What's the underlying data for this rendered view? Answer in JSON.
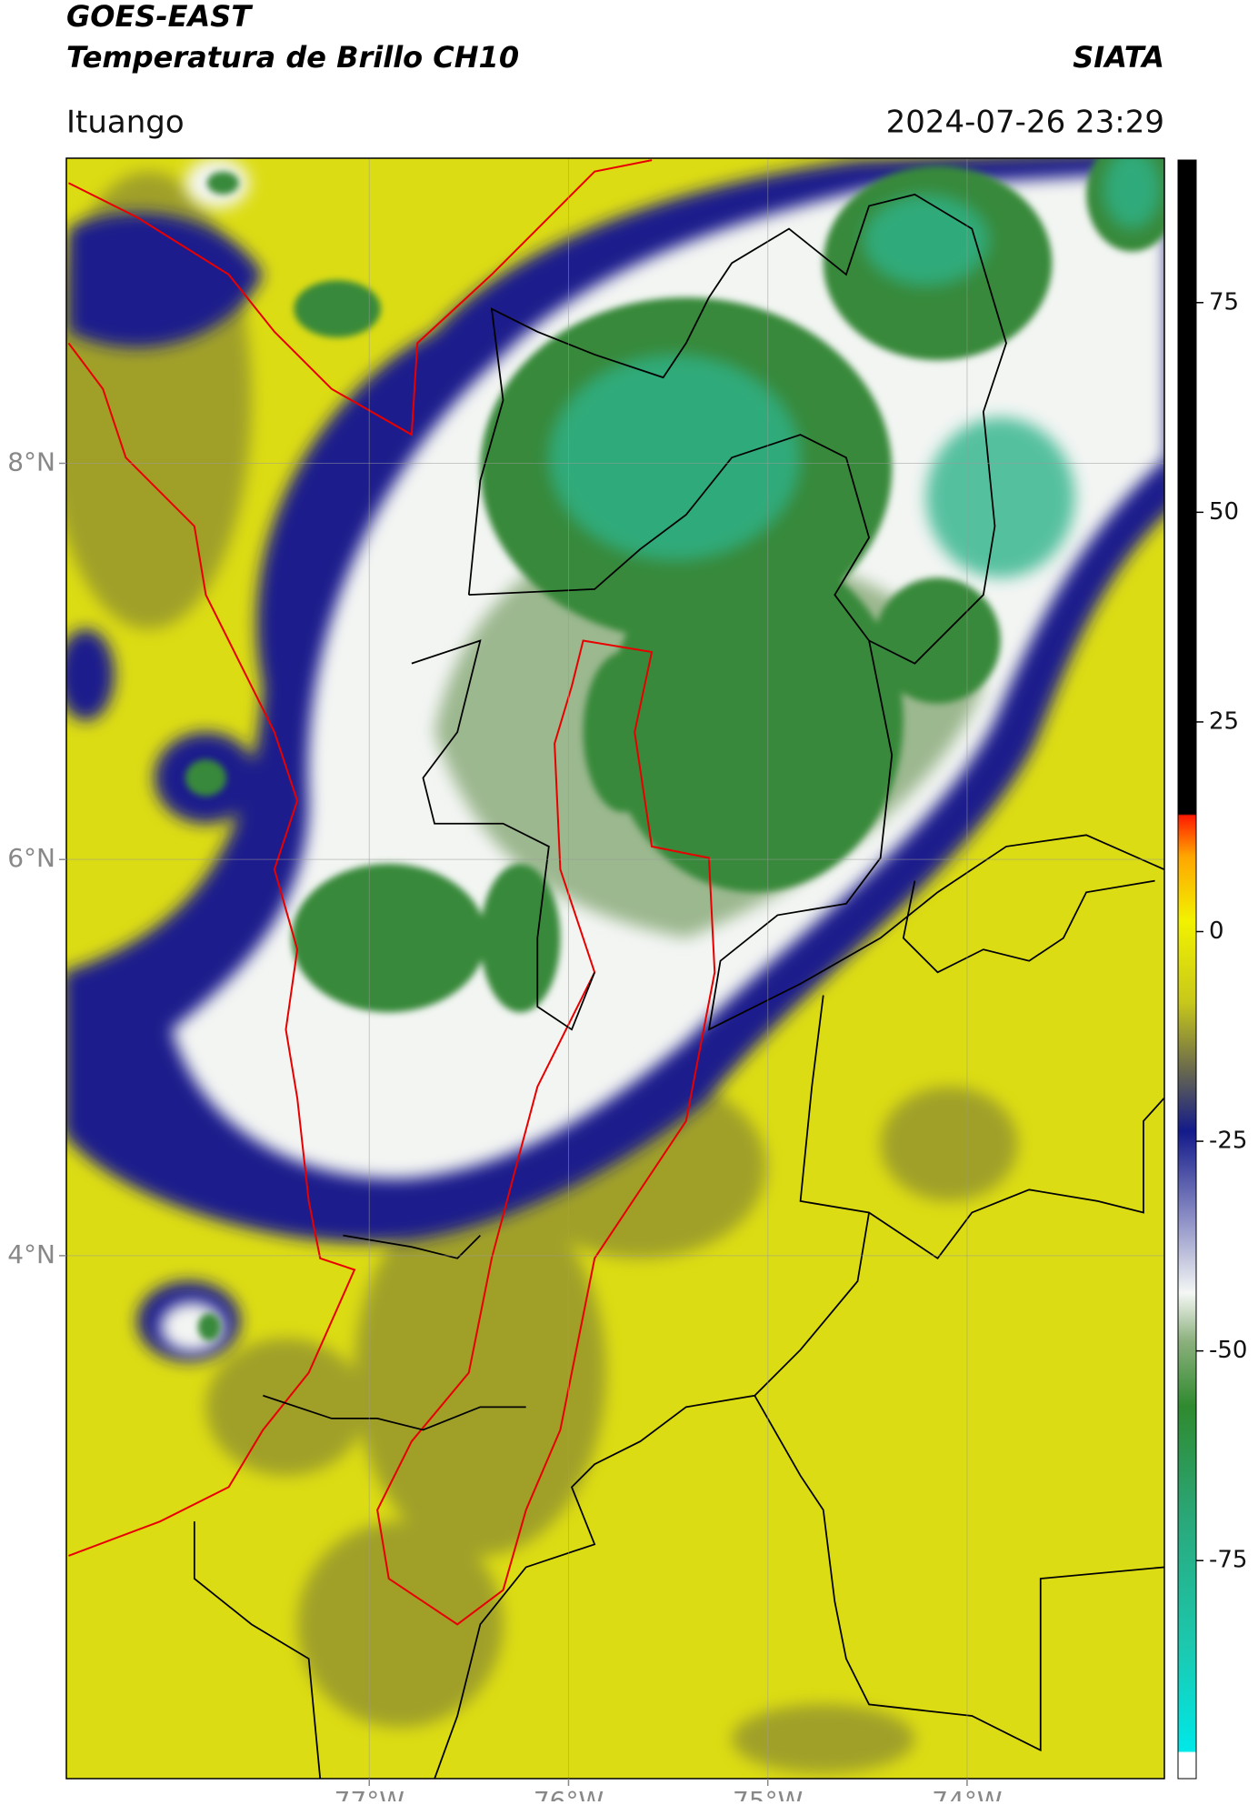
{
  "map": {
    "title": "GOES-EAST",
    "subtitle": "Temperatura de Brillo CH10",
    "brand": "SIATA",
    "location": "Ituango",
    "timestamp": "2024-07-26 23:29",
    "xlim": [
      -78.52,
      -73.01
    ],
    "ylim": [
      1.36,
      9.54
    ],
    "xticks": [
      {
        "value": -77,
        "label": "77°W"
      },
      {
        "value": -76,
        "label": "76°W"
      },
      {
        "value": -75,
        "label": "75°W"
      },
      {
        "value": -74,
        "label": "74°W"
      }
    ],
    "yticks": [
      {
        "value": 8,
        "label": "8°N"
      },
      {
        "value": 6,
        "label": "6°N"
      },
      {
        "value": 4,
        "label": "4°N"
      }
    ],
    "colorbar": {
      "lim": [
        -101,
        92
      ],
      "ticks": [
        75,
        50,
        25,
        0,
        -25,
        -50,
        -75
      ]
    }
  }
}
